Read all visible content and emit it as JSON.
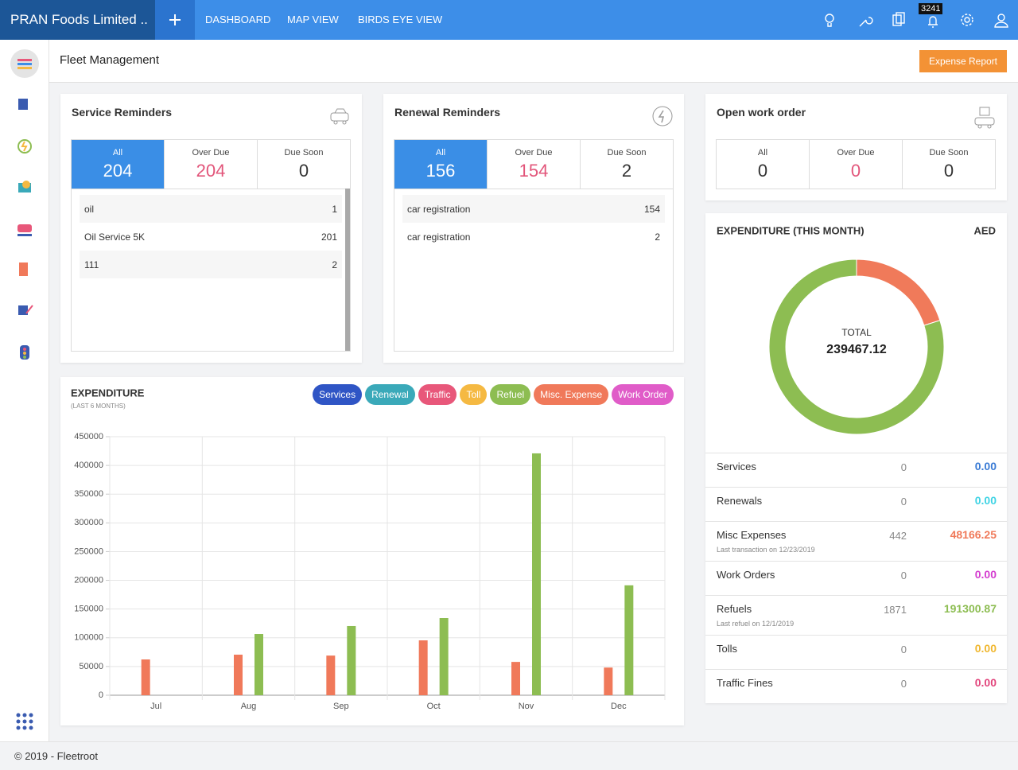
{
  "header": {
    "brand": "PRAN Foods Limited ..",
    "nav": [
      "DASHBOARD",
      "MAP VIEW",
      "BIRDS EYE VIEW"
    ],
    "notification_count": 3241
  },
  "page": {
    "title": "Fleet Management",
    "button": "Expense Report"
  },
  "service_reminders": {
    "title": "Service Reminders",
    "active_tab": 0,
    "tabs": [
      {
        "label": "All",
        "value": 204
      },
      {
        "label": "Over Due",
        "value": 204
      },
      {
        "label": "Due Soon",
        "value": 0
      }
    ],
    "items": [
      {
        "name": "oil",
        "count": 1
      },
      {
        "name": "Oil Service 5K",
        "count": 201
      },
      {
        "name": "111",
        "count": 2
      }
    ]
  },
  "renewal_reminders": {
    "title": "Renewal Reminders",
    "active_tab": 0,
    "tabs": [
      {
        "label": "All",
        "value": 156
      },
      {
        "label": "Over Due",
        "value": 154
      },
      {
        "label": "Due Soon",
        "value": 2
      }
    ],
    "items": [
      {
        "name": "car registration",
        "count": 154
      },
      {
        "name": "car registration",
        "count": 2
      }
    ]
  },
  "open_work_order": {
    "title": "Open work order",
    "tabs": [
      {
        "label": "All",
        "value": 0
      },
      {
        "label": "Over Due",
        "value": 0
      },
      {
        "label": "Due Soon",
        "value": 0
      }
    ]
  },
  "chart_data": [
    {
      "type": "bar",
      "title": "EXPENDITURE",
      "subtitle": "(LAST 6 MONTHS)",
      "categories": [
        "Jul",
        "Aug",
        "Sep",
        "Oct",
        "Nov",
        "Dec"
      ],
      "series": [
        {
          "name": "Services",
          "color": "#2f55c5",
          "values": [
            null,
            null,
            null,
            null,
            null,
            null
          ]
        },
        {
          "name": "Renewal",
          "color": "#3aa9b9",
          "values": [
            null,
            null,
            null,
            null,
            null,
            null
          ]
        },
        {
          "name": "Traffic",
          "color": "#e8577a",
          "values": [
            null,
            null,
            null,
            null,
            null,
            null
          ]
        },
        {
          "name": "Toll",
          "color": "#f5b942",
          "values": [
            null,
            null,
            null,
            null,
            null,
            null
          ]
        },
        {
          "name": "Refuel",
          "color": "#8dbd52",
          "values": [
            null,
            106600,
            120500,
            134300,
            421000,
            191300.87
          ]
        },
        {
          "name": "Misc. Expense",
          "color": "#f0795a",
          "values": [
            62300,
            70600,
            69000,
            95500,
            58000,
            48166.25
          ]
        },
        {
          "name": "Work Order",
          "color": "#e05cc8",
          "values": [
            null,
            null,
            null,
            null,
            null,
            null
          ]
        }
      ],
      "ylim": [
        0,
        450000
      ],
      "yticks": [
        0,
        50000,
        100000,
        150000,
        200000,
        250000,
        300000,
        350000,
        400000,
        450000
      ],
      "grid": true
    },
    {
      "type": "pie",
      "title": "EXPENDITURE (THIS MONTH)",
      "currency": "AED",
      "center_label": "TOTAL",
      "total": 239467.12,
      "categories": [
        "Services",
        "Renewals",
        "Misc Expenses",
        "Work Orders",
        "Refuels",
        "Tolls",
        "Traffic Fines"
      ],
      "values": [
        0,
        0,
        48166.25,
        0,
        191300.87,
        0,
        0
      ],
      "value_labels": [
        "0.00",
        "0.00",
        "48166.25",
        "0.00",
        "191300.87",
        "0.00",
        "0.00"
      ],
      "counts": [
        0,
        0,
        442,
        0,
        1871,
        0,
        0
      ],
      "notes": [
        null,
        null,
        "Last transaction on 12/23/2019",
        null,
        "Last refuel on 12/1/2019",
        null,
        null
      ],
      "colors": [
        "#3a7bd5",
        "#3fd3e4",
        "#f07a5a",
        "#d43dcf",
        "#8dbd52",
        "#f0b72f",
        "#e2457c"
      ]
    }
  ],
  "footer": "© 2019 - Fleetroot"
}
